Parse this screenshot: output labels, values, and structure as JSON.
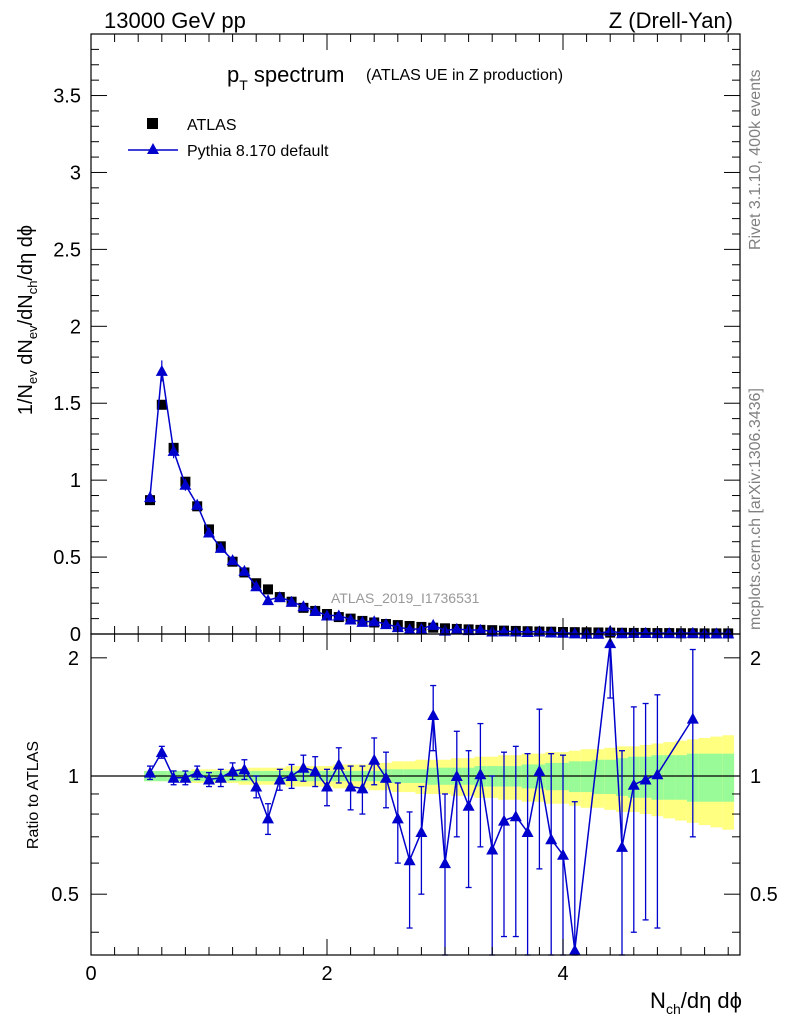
{
  "header": {
    "left": "13000 GeV pp",
    "right": "Z (Drell-Yan)"
  },
  "side_labels": {
    "rivet": "Rivet 3.1.10,  400k events",
    "mcplots": "mcplots.cern.ch [arXiv:1306.3436]"
  },
  "colors": {
    "data": "#000000",
    "mc": "#0000cc",
    "band_green": "#98fb98",
    "band_yellow": "#ffff80"
  },
  "chart_data": [
    {
      "type": "scatter",
      "title_main": "p",
      "title_sub": "T",
      "title_rest": " spectrum",
      "title_paren": "(ATLAS UE in Z production)",
      "ylabel": "1/N_ev dN_ev/dN_ch/dη dϕ",
      "watermark": "ATLAS_2019_I1736531",
      "xlim": [
        0,
        5.5
      ],
      "ylim": [
        0,
        3.9
      ],
      "yticks": [
        "0",
        "0.5",
        "1",
        "1.5",
        "2",
        "2.5",
        "3",
        "3.5"
      ],
      "series": [
        {
          "name": "ATLAS",
          "x": [
            0.5,
            0.6,
            0.7,
            0.8,
            0.9,
            1.0,
            1.1,
            1.2,
            1.3,
            1.4,
            1.5,
            1.6,
            1.7,
            1.8,
            1.9,
            2.0,
            2.1,
            2.2,
            2.3,
            2.4,
            2.5,
            2.6,
            2.7,
            2.8,
            2.9,
            3.0,
            3.1,
            3.2,
            3.3,
            3.4,
            3.5,
            3.6,
            3.7,
            3.8,
            3.9,
            4.0,
            4.1,
            4.2,
            4.3,
            4.4,
            4.5,
            4.6,
            4.7,
            4.8,
            4.9,
            5.0,
            5.1,
            5.2,
            5.3,
            5.4
          ],
          "y": [
            0.87,
            1.49,
            1.21,
            0.99,
            0.83,
            0.68,
            0.57,
            0.47,
            0.4,
            0.33,
            0.29,
            0.24,
            0.21,
            0.17,
            0.15,
            0.13,
            0.11,
            0.1,
            0.085,
            0.075,
            0.065,
            0.058,
            0.052,
            0.046,
            0.041,
            0.037,
            0.033,
            0.03,
            0.027,
            0.025,
            0.022,
            0.02,
            0.018,
            0.016,
            0.015,
            0.013,
            0.012,
            0.011,
            0.01,
            0.009,
            0.008,
            0.007,
            0.007,
            0.006,
            0.006,
            0.005,
            0.005,
            0.004,
            0.004,
            0.004
          ]
        },
        {
          "name": "Pythia 8.170 default",
          "x": [
            0.5,
            0.6,
            0.7,
            0.8,
            0.9,
            1.0,
            1.1,
            1.2,
            1.3,
            1.4,
            1.5,
            1.6,
            1.7,
            1.8,
            1.9,
            2.0,
            2.1,
            2.2,
            2.3,
            2.4,
            2.5,
            2.6,
            2.7,
            2.8,
            2.9,
            3.0,
            3.1,
            3.2,
            3.3,
            3.4,
            3.5,
            3.6,
            3.7,
            3.8,
            3.9,
            4.0,
            4.1,
            4.2,
            4.3,
            4.4,
            4.5,
            4.6,
            4.7,
            4.8,
            4.9,
            5.0,
            5.1,
            5.2,
            5.3,
            5.4
          ],
          "y": [
            0.89,
            1.71,
            1.19,
            0.97,
            0.84,
            0.66,
            0.56,
            0.48,
            0.41,
            0.31,
            0.22,
            0.24,
            0.21,
            0.18,
            0.15,
            0.12,
            0.12,
            0.094,
            0.079,
            0.083,
            0.064,
            0.045,
            0.031,
            0.033,
            0.059,
            0.022,
            0.033,
            0.025,
            0.027,
            0.016,
            0.017,
            0.016,
            0.013,
            0.017,
            0.01,
            0.008,
            0.004,
            0.002,
            0.002,
            0.02,
            0.005,
            0.007,
            0.007,
            0.006,
            0.006,
            0.005,
            0.007,
            0.004,
            0.004,
            0.004
          ]
        }
      ]
    },
    {
      "type": "scatter",
      "ylabel": "Ratio to ATLAS",
      "xlabel": "N_ch/dη dϕ",
      "xlim": [
        0,
        5.5
      ],
      "ylim": [
        0.35,
        2.3
      ],
      "xticks": [
        "0",
        "2",
        "4"
      ],
      "yticks": [
        "0.5",
        "1",
        "2"
      ],
      "series": [
        {
          "name": "Pythia 8.170 default",
          "x": [
            0.5,
            0.6,
            0.7,
            0.8,
            0.9,
            1.0,
            1.1,
            1.2,
            1.3,
            1.4,
            1.5,
            1.6,
            1.7,
            1.8,
            1.9,
            2.0,
            2.1,
            2.2,
            2.3,
            2.4,
            2.5,
            2.6,
            2.7,
            2.8,
            2.9,
            3.0,
            3.1,
            3.2,
            3.3,
            3.4,
            3.5,
            3.6,
            3.7,
            3.8,
            3.9,
            4.0,
            4.1,
            4.4,
            4.5,
            4.6,
            4.7,
            4.8,
            5.1
          ],
          "y": [
            1.02,
            1.15,
            0.99,
            0.99,
            1.02,
            0.98,
            0.99,
            1.03,
            1.04,
            0.94,
            0.78,
            0.98,
            1.0,
            1.05,
            1.03,
            0.94,
            1.07,
            0.94,
            0.93,
            1.1,
            0.99,
            0.78,
            0.61,
            0.72,
            1.43,
            0.6,
            1.0,
            0.84,
            1.01,
            0.65,
            0.77,
            0.79,
            0.72,
            1.03,
            0.69,
            0.63,
            0.36,
            2.18,
            0.66,
            0.95,
            0.98,
            1.01,
            1.4
          ],
          "err": [
            0.04,
            0.04,
            0.04,
            0.04,
            0.04,
            0.04,
            0.05,
            0.05,
            0.06,
            0.06,
            0.07,
            0.06,
            0.07,
            0.08,
            0.09,
            0.1,
            0.11,
            0.12,
            0.13,
            0.15,
            0.16,
            0.18,
            0.2,
            0.22,
            0.27,
            0.3,
            0.3,
            0.32,
            0.35,
            0.35,
            0.38,
            0.4,
            0.42,
            0.45,
            0.45,
            0.5,
            0.5,
            0.6,
            0.5,
            0.55,
            0.55,
            0.6,
            0.7
          ]
        }
      ],
      "band_green_halfwidth": [
        0.03,
        0.03,
        0.03,
        0.03,
        0.03,
        0.03,
        0.03,
        0.03,
        0.03,
        0.03,
        0.03,
        0.03,
        0.03,
        0.03,
        0.03,
        0.03,
        0.03,
        0.03,
        0.03,
        0.03,
        0.04,
        0.04,
        0.04,
        0.04,
        0.05,
        0.05,
        0.05,
        0.05,
        0.06,
        0.06,
        0.06,
        0.06,
        0.07,
        0.07,
        0.08,
        0.08,
        0.09,
        0.09,
        0.1,
        0.1,
        0.11,
        0.12,
        0.12,
        0.13,
        0.13,
        0.13,
        0.14,
        0.14,
        0.14,
        0.14
      ],
      "band_yellow_halfwidth": [
        0.03,
        0.03,
        0.03,
        0.03,
        0.04,
        0.04,
        0.04,
        0.04,
        0.05,
        0.05,
        0.05,
        0.05,
        0.06,
        0.06,
        0.06,
        0.06,
        0.07,
        0.07,
        0.07,
        0.08,
        0.08,
        0.09,
        0.09,
        0.1,
        0.1,
        0.1,
        0.11,
        0.11,
        0.12,
        0.12,
        0.13,
        0.13,
        0.14,
        0.14,
        0.15,
        0.15,
        0.16,
        0.17,
        0.17,
        0.18,
        0.19,
        0.19,
        0.2,
        0.21,
        0.22,
        0.23,
        0.24,
        0.25,
        0.26,
        0.27
      ]
    }
  ]
}
